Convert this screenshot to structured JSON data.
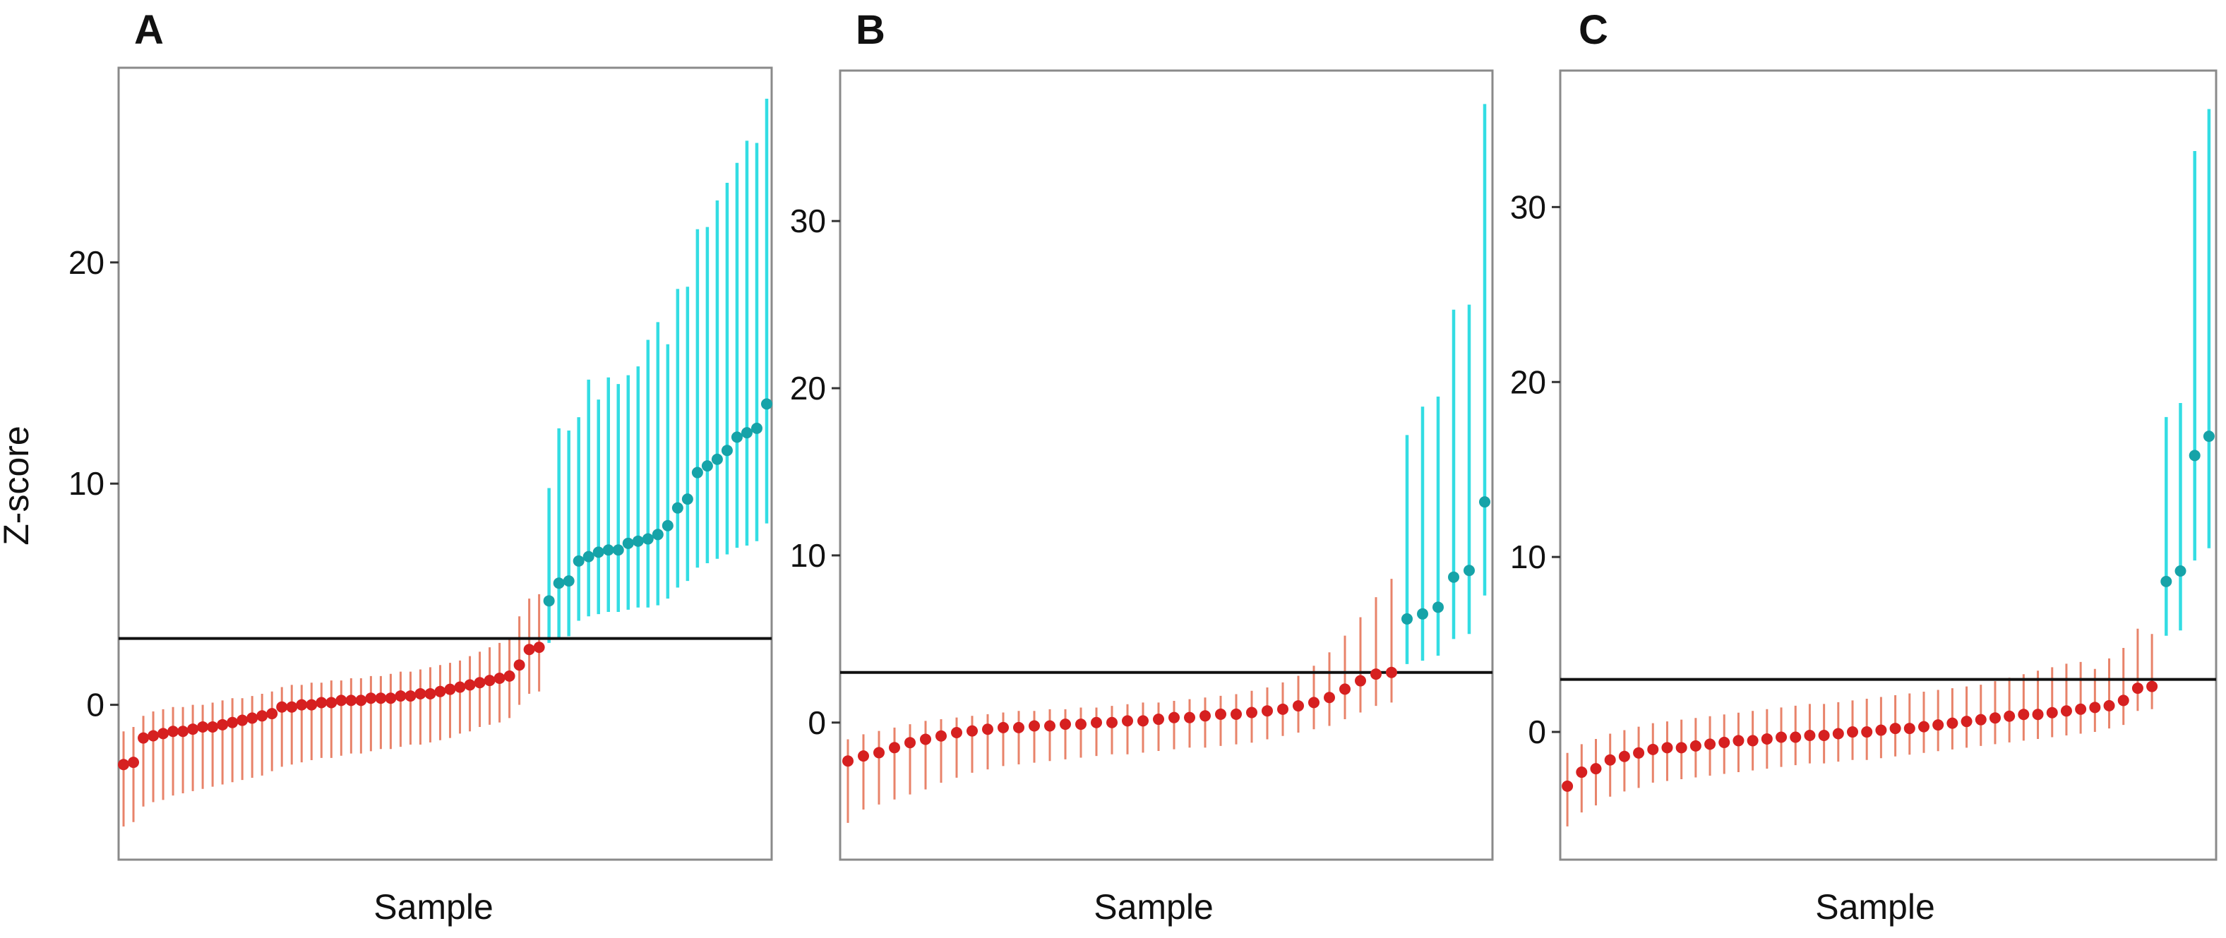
{
  "colors": {
    "below_threshold_point": "#d62020",
    "below_threshold_bar": "#e8836a",
    "above_threshold_point": "#16a3a8",
    "above_threshold_bar": "#33dde3",
    "threshold_line": "#111111"
  },
  "chart_data": [
    {
      "panel": "A",
      "type": "scatter",
      "title": "",
      "xlabel": "Sample",
      "ylabel": "Z-score",
      "ylim": [
        -7.0,
        28.8
      ],
      "yticks": [
        0,
        10,
        20
      ],
      "threshold": 3,
      "series": [
        {
          "name": "below-threshold",
          "points": [
            {
              "y": -2.7,
              "lo": -5.5,
              "hi": -1.2
            },
            {
              "y": -2.6,
              "lo": -5.3,
              "hi": -1.0
            },
            {
              "y": -1.5,
              "lo": -4.6,
              "hi": -0.5
            },
            {
              "y": -1.4,
              "lo": -4.4,
              "hi": -0.3
            },
            {
              "y": -1.3,
              "lo": -4.3,
              "hi": -0.2
            },
            {
              "y": -1.2,
              "lo": -4.1,
              "hi": -0.1
            },
            {
              "y": -1.2,
              "lo": -4.0,
              "hi": -0.1
            },
            {
              "y": -1.1,
              "lo": -3.9,
              "hi": 0.0
            },
            {
              "y": -1.0,
              "lo": -3.8,
              "hi": 0.0
            },
            {
              "y": -1.0,
              "lo": -3.7,
              "hi": 0.1
            },
            {
              "y": -0.9,
              "lo": -3.6,
              "hi": 0.2
            },
            {
              "y": -0.8,
              "lo": -3.5,
              "hi": 0.3
            },
            {
              "y": -0.7,
              "lo": -3.4,
              "hi": 0.3
            },
            {
              "y": -0.6,
              "lo": -3.3,
              "hi": 0.4
            },
            {
              "y": -0.5,
              "lo": -3.2,
              "hi": 0.5
            },
            {
              "y": -0.4,
              "lo": -3.0,
              "hi": 0.6
            },
            {
              "y": -0.1,
              "lo": -2.8,
              "hi": 0.8
            },
            {
              "y": -0.1,
              "lo": -2.7,
              "hi": 0.9
            },
            {
              "y": 0.0,
              "lo": -2.6,
              "hi": 0.9
            },
            {
              "y": 0.0,
              "lo": -2.5,
              "hi": 1.0
            },
            {
              "y": 0.1,
              "lo": -2.4,
              "hi": 1.0
            },
            {
              "y": 0.1,
              "lo": -2.4,
              "hi": 1.1
            },
            {
              "y": 0.2,
              "lo": -2.3,
              "hi": 1.1
            },
            {
              "y": 0.2,
              "lo": -2.2,
              "hi": 1.2
            },
            {
              "y": 0.2,
              "lo": -2.2,
              "hi": 1.2
            },
            {
              "y": 0.3,
              "lo": -2.1,
              "hi": 1.3
            },
            {
              "y": 0.3,
              "lo": -2.0,
              "hi": 1.3
            },
            {
              "y": 0.3,
              "lo": -2.0,
              "hi": 1.4
            },
            {
              "y": 0.4,
              "lo": -1.9,
              "hi": 1.5
            },
            {
              "y": 0.4,
              "lo": -1.8,
              "hi": 1.5
            },
            {
              "y": 0.5,
              "lo": -1.8,
              "hi": 1.6
            },
            {
              "y": 0.5,
              "lo": -1.7,
              "hi": 1.7
            },
            {
              "y": 0.6,
              "lo": -1.6,
              "hi": 1.8
            },
            {
              "y": 0.7,
              "lo": -1.5,
              "hi": 1.9
            },
            {
              "y": 0.8,
              "lo": -1.3,
              "hi": 2.0
            },
            {
              "y": 0.9,
              "lo": -1.2,
              "hi": 2.2
            },
            {
              "y": 1.0,
              "lo": -1.0,
              "hi": 2.4
            },
            {
              "y": 1.1,
              "lo": -0.9,
              "hi": 2.6
            },
            {
              "y": 1.2,
              "lo": -0.8,
              "hi": 2.8
            },
            {
              "y": 1.3,
              "lo": -0.6,
              "hi": 3.0
            },
            {
              "y": 1.8,
              "lo": 0.0,
              "hi": 4.0
            },
            {
              "y": 2.5,
              "lo": 0.5,
              "hi": 4.8
            },
            {
              "y": 2.6,
              "lo": 0.6,
              "hi": 5.0
            }
          ]
        },
        {
          "name": "above-threshold",
          "points": [
            {
              "y": 4.7,
              "lo": 2.8,
              "hi": 9.8
            },
            {
              "y": 5.5,
              "lo": 3.0,
              "hi": 12.5
            },
            {
              "y": 5.6,
              "lo": 3.1,
              "hi": 12.4
            },
            {
              "y": 6.5,
              "lo": 3.8,
              "hi": 13.0
            },
            {
              "y": 6.7,
              "lo": 4.0,
              "hi": 14.7
            },
            {
              "y": 6.9,
              "lo": 4.1,
              "hi": 13.8
            },
            {
              "y": 7.0,
              "lo": 4.2,
              "hi": 14.8
            },
            {
              "y": 7.0,
              "lo": 4.2,
              "hi": 14.5
            },
            {
              "y": 7.3,
              "lo": 4.3,
              "hi": 14.9
            },
            {
              "y": 7.4,
              "lo": 4.4,
              "hi": 15.3
            },
            {
              "y": 7.5,
              "lo": 4.4,
              "hi": 16.5
            },
            {
              "y": 7.7,
              "lo": 4.5,
              "hi": 17.3
            },
            {
              "y": 8.1,
              "lo": 4.8,
              "hi": 16.3
            },
            {
              "y": 8.9,
              "lo": 5.3,
              "hi": 18.8
            },
            {
              "y": 9.3,
              "lo": 5.6,
              "hi": 18.9
            },
            {
              "y": 10.5,
              "lo": 6.2,
              "hi": 21.5
            },
            {
              "y": 10.8,
              "lo": 6.4,
              "hi": 21.6
            },
            {
              "y": 11.1,
              "lo": 6.6,
              "hi": 22.8
            },
            {
              "y": 11.5,
              "lo": 6.8,
              "hi": 23.6
            },
            {
              "y": 12.1,
              "lo": 7.1,
              "hi": 24.5
            },
            {
              "y": 12.3,
              "lo": 7.2,
              "hi": 25.5
            },
            {
              "y": 12.5,
              "lo": 7.4,
              "hi": 25.4
            },
            {
              "y": 13.6,
              "lo": 8.2,
              "hi": 27.4
            }
          ]
        }
      ]
    },
    {
      "panel": "B",
      "type": "scatter",
      "title": "",
      "xlabel": "Sample",
      "ylabel": "",
      "ylim": [
        -8.2,
        39.0
      ],
      "yticks": [
        0,
        10,
        20,
        30
      ],
      "threshold": 3,
      "series": [
        {
          "name": "below-threshold",
          "points": [
            {
              "y": -2.3,
              "lo": -6.0,
              "hi": -1.0
            },
            {
              "y": -2.0,
              "lo": -5.2,
              "hi": -0.7
            },
            {
              "y": -1.8,
              "lo": -4.9,
              "hi": -0.5
            },
            {
              "y": -1.5,
              "lo": -4.6,
              "hi": -0.3
            },
            {
              "y": -1.2,
              "lo": -4.3,
              "hi": -0.1
            },
            {
              "y": -1.0,
              "lo": -4.0,
              "hi": 0.1
            },
            {
              "y": -0.8,
              "lo": -3.6,
              "hi": 0.2
            },
            {
              "y": -0.6,
              "lo": -3.3,
              "hi": 0.3
            },
            {
              "y": -0.5,
              "lo": -3.0,
              "hi": 0.4
            },
            {
              "y": -0.4,
              "lo": -2.8,
              "hi": 0.5
            },
            {
              "y": -0.3,
              "lo": -2.6,
              "hi": 0.6
            },
            {
              "y": -0.3,
              "lo": -2.5,
              "hi": 0.7
            },
            {
              "y": -0.2,
              "lo": -2.4,
              "hi": 0.7
            },
            {
              "y": -0.2,
              "lo": -2.3,
              "hi": 0.8
            },
            {
              "y": -0.1,
              "lo": -2.2,
              "hi": 0.8
            },
            {
              "y": -0.1,
              "lo": -2.1,
              "hi": 0.9
            },
            {
              "y": 0.0,
              "lo": -2.0,
              "hi": 0.9
            },
            {
              "y": 0.0,
              "lo": -1.9,
              "hi": 1.0
            },
            {
              "y": 0.1,
              "lo": -1.9,
              "hi": 1.1
            },
            {
              "y": 0.1,
              "lo": -1.8,
              "hi": 1.2
            },
            {
              "y": 0.2,
              "lo": -1.7,
              "hi": 1.2
            },
            {
              "y": 0.3,
              "lo": -1.6,
              "hi": 1.3
            },
            {
              "y": 0.3,
              "lo": -1.5,
              "hi": 1.4
            },
            {
              "y": 0.4,
              "lo": -1.5,
              "hi": 1.5
            },
            {
              "y": 0.5,
              "lo": -1.4,
              "hi": 1.6
            },
            {
              "y": 0.5,
              "lo": -1.3,
              "hi": 1.7
            },
            {
              "y": 0.6,
              "lo": -1.2,
              "hi": 1.9
            },
            {
              "y": 0.7,
              "lo": -1.0,
              "hi": 2.1
            },
            {
              "y": 0.8,
              "lo": -0.8,
              "hi": 2.4
            },
            {
              "y": 1.0,
              "lo": -0.6,
              "hi": 2.8
            },
            {
              "y": 1.2,
              "lo": -0.4,
              "hi": 3.4
            },
            {
              "y": 1.5,
              "lo": -0.2,
              "hi": 4.2
            },
            {
              "y": 2.0,
              "lo": 0.2,
              "hi": 5.2
            },
            {
              "y": 2.5,
              "lo": 0.6,
              "hi": 6.3
            },
            {
              "y": 2.9,
              "lo": 1.0,
              "hi": 7.5
            },
            {
              "y": 3.0,
              "lo": 1.2,
              "hi": 8.6
            }
          ]
        },
        {
          "name": "above-threshold",
          "points": [
            {
              "y": 6.2,
              "lo": 3.5,
              "hi": 17.2
            },
            {
              "y": 6.5,
              "lo": 3.7,
              "hi": 18.9
            },
            {
              "y": 6.9,
              "lo": 4.0,
              "hi": 19.5
            },
            {
              "y": 8.7,
              "lo": 5.0,
              "hi": 24.7
            },
            {
              "y": 9.1,
              "lo": 5.3,
              "hi": 25.0
            },
            {
              "y": 13.2,
              "lo": 7.6,
              "hi": 37.0
            }
          ]
        }
      ]
    },
    {
      "panel": "C",
      "type": "scatter",
      "title": "",
      "xlabel": "Sample",
      "ylabel": "",
      "ylim": [
        -7.3,
        37.8
      ],
      "yticks": [
        0,
        10,
        20,
        30
      ],
      "threshold": 3,
      "series": [
        {
          "name": "below-threshold",
          "points": [
            {
              "y": -3.1,
              "lo": -5.4,
              "hi": -1.2
            },
            {
              "y": -2.3,
              "lo": -4.6,
              "hi": -0.7
            },
            {
              "y": -2.1,
              "lo": -4.2,
              "hi": -0.4
            },
            {
              "y": -1.6,
              "lo": -3.7,
              "hi": -0.1
            },
            {
              "y": -1.4,
              "lo": -3.4,
              "hi": 0.1
            },
            {
              "y": -1.2,
              "lo": -3.2,
              "hi": 0.3
            },
            {
              "y": -1.0,
              "lo": -2.9,
              "hi": 0.5
            },
            {
              "y": -0.9,
              "lo": -2.8,
              "hi": 0.6
            },
            {
              "y": -0.9,
              "lo": -2.7,
              "hi": 0.7
            },
            {
              "y": -0.8,
              "lo": -2.6,
              "hi": 0.8
            },
            {
              "y": -0.7,
              "lo": -2.5,
              "hi": 0.9
            },
            {
              "y": -0.6,
              "lo": -2.4,
              "hi": 1.0
            },
            {
              "y": -0.5,
              "lo": -2.3,
              "hi": 1.1
            },
            {
              "y": -0.5,
              "lo": -2.2,
              "hi": 1.2
            },
            {
              "y": -0.4,
              "lo": -2.1,
              "hi": 1.3
            },
            {
              "y": -0.3,
              "lo": -2.0,
              "hi": 1.4
            },
            {
              "y": -0.3,
              "lo": -1.9,
              "hi": 1.5
            },
            {
              "y": -0.2,
              "lo": -1.8,
              "hi": 1.6
            },
            {
              "y": -0.2,
              "lo": -1.8,
              "hi": 1.6
            },
            {
              "y": -0.1,
              "lo": -1.7,
              "hi": 1.7
            },
            {
              "y": 0.0,
              "lo": -1.6,
              "hi": 1.8
            },
            {
              "y": 0.0,
              "lo": -1.6,
              "hi": 1.9
            },
            {
              "y": 0.1,
              "lo": -1.5,
              "hi": 2.0
            },
            {
              "y": 0.2,
              "lo": -1.4,
              "hi": 2.1
            },
            {
              "y": 0.2,
              "lo": -1.3,
              "hi": 2.2
            },
            {
              "y": 0.3,
              "lo": -1.2,
              "hi": 2.3
            },
            {
              "y": 0.4,
              "lo": -1.1,
              "hi": 2.4
            },
            {
              "y": 0.5,
              "lo": -1.0,
              "hi": 2.5
            },
            {
              "y": 0.6,
              "lo": -0.9,
              "hi": 2.6
            },
            {
              "y": 0.7,
              "lo": -0.8,
              "hi": 2.7
            },
            {
              "y": 0.8,
              "lo": -0.7,
              "hi": 2.9
            },
            {
              "y": 0.9,
              "lo": -0.6,
              "hi": 3.1
            },
            {
              "y": 1.0,
              "lo": -0.5,
              "hi": 3.3
            },
            {
              "y": 1.0,
              "lo": -0.4,
              "hi": 3.5
            },
            {
              "y": 1.1,
              "lo": -0.3,
              "hi": 3.7
            },
            {
              "y": 1.2,
              "lo": -0.2,
              "hi": 3.9
            },
            {
              "y": 1.3,
              "lo": -0.1,
              "hi": 4.0
            },
            {
              "y": 1.4,
              "lo": 0.0,
              "hi": 3.6
            },
            {
              "y": 1.5,
              "lo": 0.2,
              "hi": 4.2
            },
            {
              "y": 1.8,
              "lo": 0.4,
              "hi": 4.8
            },
            {
              "y": 2.5,
              "lo": 1.2,
              "hi": 5.9
            },
            {
              "y": 2.6,
              "lo": 1.3,
              "hi": 5.6
            }
          ]
        },
        {
          "name": "above-threshold",
          "points": [
            {
              "y": 8.6,
              "lo": 5.5,
              "hi": 18.0
            },
            {
              "y": 9.2,
              "lo": 5.8,
              "hi": 18.8
            },
            {
              "y": 15.8,
              "lo": 9.8,
              "hi": 33.2
            },
            {
              "y": 16.9,
              "lo": 10.5,
              "hi": 35.6
            }
          ]
        }
      ]
    }
  ]
}
